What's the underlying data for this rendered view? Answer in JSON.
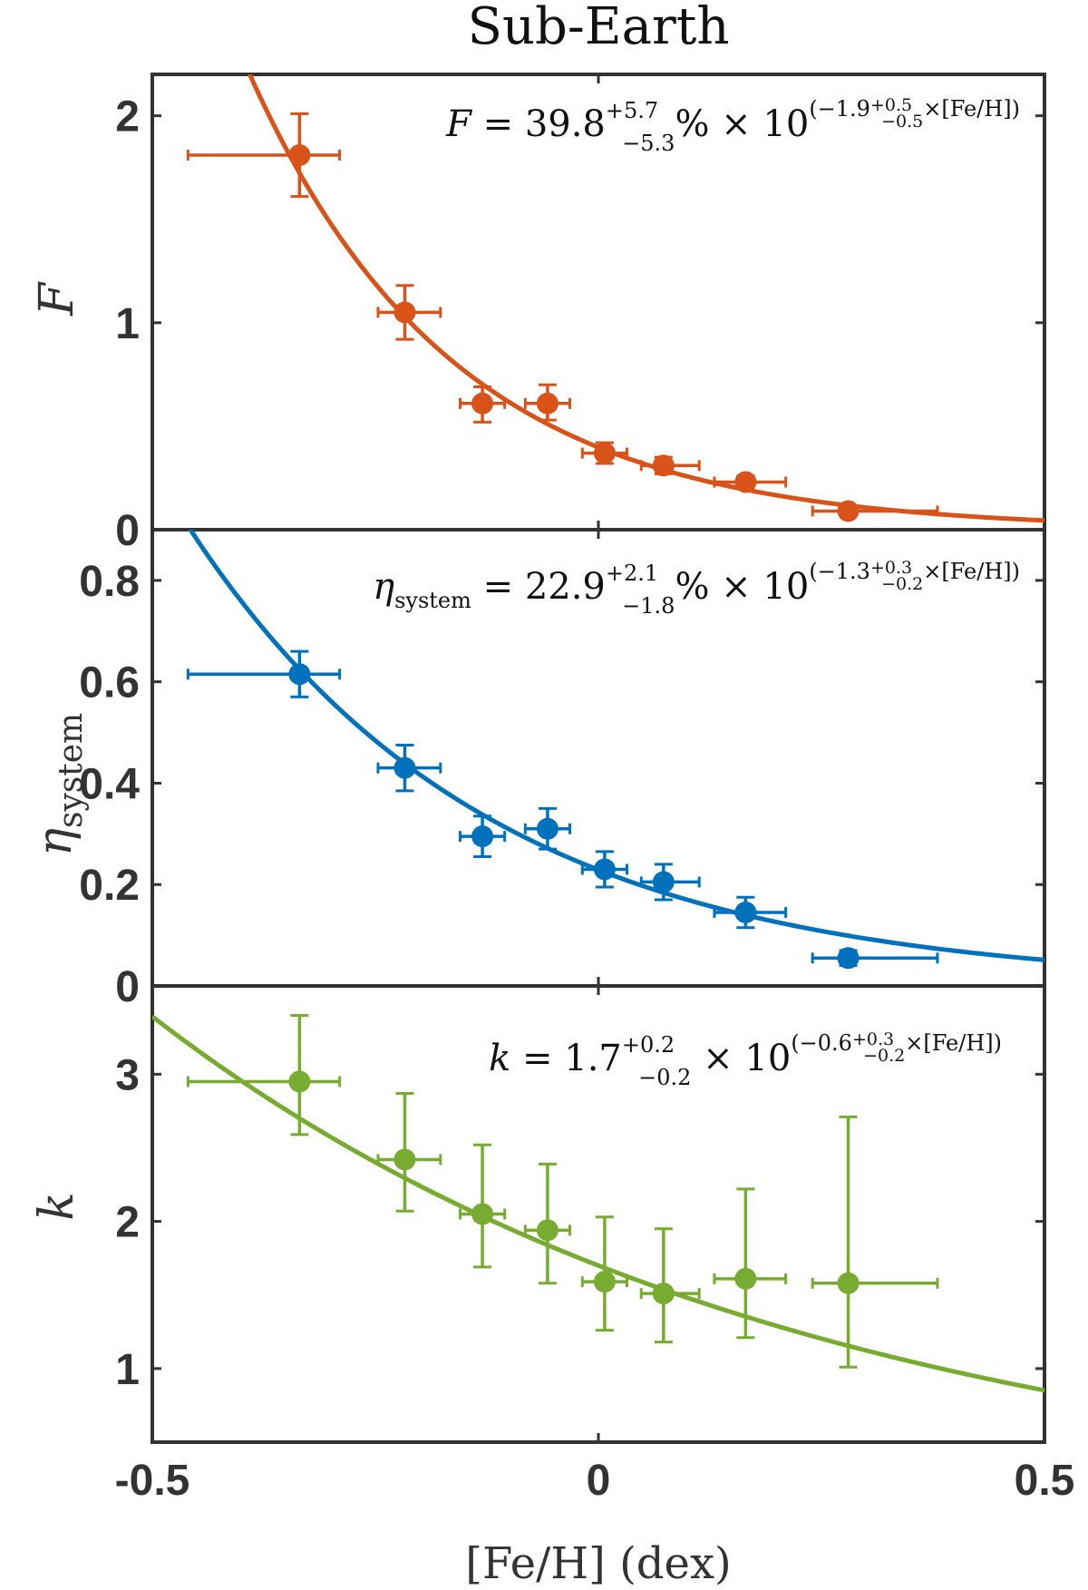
{
  "figure": {
    "title": "Sub-Earth",
    "xlabel": "[Fe/H] (dex)"
  },
  "equations": {
    "F": {
      "lhs": "F",
      "coef": "39.8",
      "coef_up": "+5.7",
      "coef_dn": "−5.3",
      "pct": "%",
      "times": "× 10",
      "exp_open": "(−1.9",
      "exp_up": "+0.5",
      "exp_dn": "−0.5",
      "exp_close": "×[Fe/H])"
    },
    "eta": {
      "lhs": "η",
      "lhs_sub": "system",
      "coef": "22.9",
      "coef_up": "+2.1",
      "coef_dn": "−1.8",
      "pct": "%",
      "times": "× 10",
      "exp_open": "(−1.3",
      "exp_up": "+0.3",
      "exp_dn": "−0.2",
      "exp_close": "×[Fe/H])"
    },
    "k": {
      "lhs": "k",
      "coef": "1.7",
      "coef_up": "+0.2",
      "coef_dn": "−0.2",
      "times": "× 10",
      "exp_open": "(−0.6",
      "exp_up": "+0.3",
      "exp_dn": "−0.2",
      "exp_close": "×[Fe/H])"
    }
  },
  "chart_data": [
    {
      "type": "scatter",
      "name": "F",
      "ylabel": "F",
      "color": "#D95319",
      "xlim": [
        -0.5,
        0.5
      ],
      "ylim": [
        0,
        2.2
      ],
      "yticks": [
        0,
        1,
        2
      ],
      "ytick_labels": [
        "0",
        "1",
        "2"
      ],
      "points": [
        {
          "x": -0.335,
          "y": 1.81,
          "xerr": [
            0.125,
            0.045
          ],
          "yerr": [
            0.2,
            0.2
          ]
        },
        {
          "x": -0.217,
          "y": 1.05,
          "xerr": [
            0.03,
            0.04
          ],
          "yerr": [
            0.13,
            0.13
          ]
        },
        {
          "x": -0.13,
          "y": 0.61,
          "xerr": [
            0.025,
            0.025
          ],
          "yerr": [
            0.09,
            0.08
          ]
        },
        {
          "x": -0.057,
          "y": 0.61,
          "xerr": [
            0.025,
            0.025
          ],
          "yerr": [
            0.08,
            0.09
          ]
        },
        {
          "x": 0.007,
          "y": 0.37,
          "xerr": [
            0.025,
            0.025
          ],
          "yerr": [
            0.05,
            0.05
          ]
        },
        {
          "x": 0.073,
          "y": 0.31,
          "xerr": [
            0.025,
            0.04
          ],
          "yerr": [
            0.04,
            0.04
          ]
        },
        {
          "x": 0.165,
          "y": 0.23,
          "xerr": [
            0.035,
            0.045
          ],
          "yerr": [
            0.03,
            0.03
          ]
        },
        {
          "x": 0.28,
          "y": 0.09,
          "xerr": [
            0.04,
            0.1
          ],
          "yerr": [
            0.02,
            0.02
          ]
        }
      ],
      "fit": {
        "a": 0.398,
        "b": -1.9
      }
    },
    {
      "type": "scatter",
      "name": "eta_system",
      "ylabel": "η",
      "ylabel_sub": "system",
      "color": "#0072BD",
      "xlim": [
        -0.5,
        0.5
      ],
      "ylim": [
        0,
        0.9
      ],
      "yticks": [
        0,
        0.2,
        0.4,
        0.6,
        0.8
      ],
      "ytick_labels": [
        "0",
        "0.2",
        "0.4",
        "0.6",
        "0.8"
      ],
      "points": [
        {
          "x": -0.335,
          "y": 0.615,
          "xerr": [
            0.125,
            0.045
          ],
          "yerr": [
            0.045,
            0.045
          ]
        },
        {
          "x": -0.217,
          "y": 0.43,
          "xerr": [
            0.03,
            0.04
          ],
          "yerr": [
            0.045,
            0.045
          ]
        },
        {
          "x": -0.13,
          "y": 0.295,
          "xerr": [
            0.025,
            0.025
          ],
          "yerr": [
            0.04,
            0.04
          ]
        },
        {
          "x": -0.057,
          "y": 0.31,
          "xerr": [
            0.025,
            0.025
          ],
          "yerr": [
            0.04,
            0.04
          ]
        },
        {
          "x": 0.007,
          "y": 0.23,
          "xerr": [
            0.025,
            0.025
          ],
          "yerr": [
            0.035,
            0.035
          ]
        },
        {
          "x": 0.073,
          "y": 0.205,
          "xerr": [
            0.025,
            0.04
          ],
          "yerr": [
            0.035,
            0.035
          ]
        },
        {
          "x": 0.165,
          "y": 0.145,
          "xerr": [
            0.035,
            0.045
          ],
          "yerr": [
            0.03,
            0.03
          ]
        },
        {
          "x": 0.28,
          "y": 0.055,
          "xerr": [
            0.04,
            0.1
          ],
          "yerr": [
            0.015,
            0.015
          ]
        }
      ],
      "fit": {
        "a": 0.229,
        "b": -1.3
      }
    },
    {
      "type": "scatter",
      "name": "k",
      "ylabel": "k",
      "color": "#77AC30",
      "xlim": [
        -0.5,
        0.5
      ],
      "ylim": [
        0.5,
        3.6
      ],
      "yticks": [
        1,
        2,
        3
      ],
      "ytick_labels": [
        "1",
        "2",
        "3"
      ],
      "xticks": [
        -0.5,
        0,
        0.5
      ],
      "xtick_labels": [
        "-0.5",
        "0",
        "0.5"
      ],
      "points": [
        {
          "x": -0.335,
          "y": 2.95,
          "xerr": [
            0.125,
            0.045
          ],
          "yerr": [
            0.36,
            0.45
          ]
        },
        {
          "x": -0.217,
          "y": 2.42,
          "xerr": [
            0.03,
            0.04
          ],
          "yerr": [
            0.35,
            0.45
          ]
        },
        {
          "x": -0.13,
          "y": 2.05,
          "xerr": [
            0.025,
            0.025
          ],
          "yerr": [
            0.36,
            0.47
          ]
        },
        {
          "x": -0.057,
          "y": 1.94,
          "xerr": [
            0.025,
            0.025
          ],
          "yerr": [
            0.36,
            0.45
          ]
        },
        {
          "x": 0.007,
          "y": 1.59,
          "xerr": [
            0.025,
            0.025
          ],
          "yerr": [
            0.33,
            0.44
          ]
        },
        {
          "x": 0.073,
          "y": 1.51,
          "xerr": [
            0.025,
            0.04
          ],
          "yerr": [
            0.33,
            0.44
          ]
        },
        {
          "x": 0.165,
          "y": 1.61,
          "xerr": [
            0.035,
            0.045
          ],
          "yerr": [
            0.4,
            0.61
          ]
        },
        {
          "x": 0.28,
          "y": 1.58,
          "xerr": [
            0.04,
            0.1
          ],
          "yerr": [
            0.57,
            1.13
          ]
        }
      ],
      "fit": {
        "a": 1.7,
        "b": -0.6
      }
    }
  ]
}
